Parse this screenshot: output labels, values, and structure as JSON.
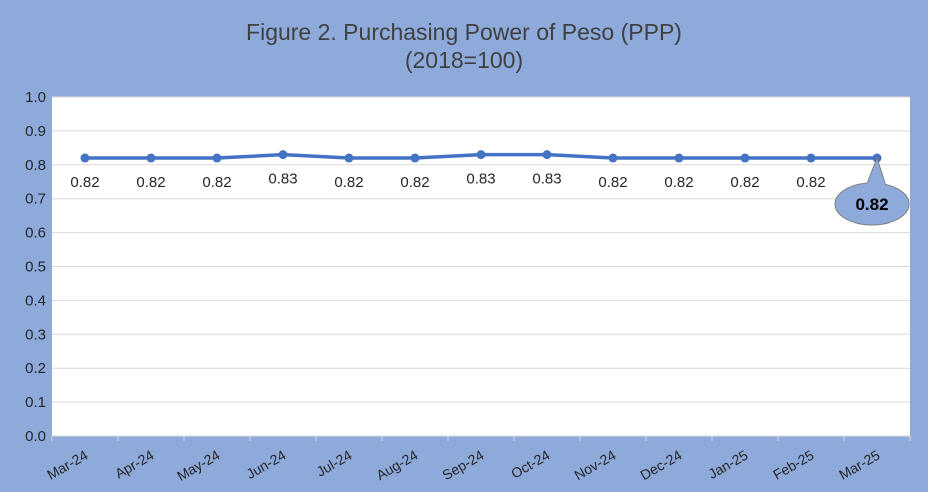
{
  "colors": {
    "background": "#8eaadb",
    "plot_area": "#ffffff",
    "gridline": "#d9d9d9",
    "series_line": "#4472c4",
    "callout_fill": "#8eaadb",
    "callout_border": "#7f7f7f"
  },
  "chart_data": {
    "type": "line",
    "title": "Figure 2. Purchasing Power of Peso (PPP)",
    "subtitle": "(2018=100)",
    "categories": [
      "Mar-24",
      "Apr-24",
      "May-24",
      "Jun-24",
      "Jul-24",
      "Aug-24",
      "Sep-24",
      "Oct-24",
      "Nov-24",
      "Dec-24",
      "Jan-25",
      "Feb-25",
      "Mar-25"
    ],
    "series": [
      {
        "values": [
          0.82,
          0.82,
          0.82,
          0.83,
          0.82,
          0.82,
          0.83,
          0.83,
          0.82,
          0.82,
          0.82,
          0.82,
          0.82
        ]
      }
    ],
    "data_labels": [
      "0.82",
      "0.82",
      "0.82",
      "0.83",
      "0.82",
      "0.82",
      "0.83",
      "0.83",
      "0.82",
      "0.82",
      "0.82",
      "0.82",
      "0.82"
    ],
    "y_ticks": [
      "0.0",
      "0.1",
      "0.2",
      "0.3",
      "0.4",
      "0.5",
      "0.6",
      "0.7",
      "0.8",
      "0.9",
      "1.0"
    ],
    "ylim": [
      0,
      1.0
    ],
    "grid": true,
    "legend": "none",
    "callout": {
      "category": "Mar-25",
      "text": "0.82"
    }
  }
}
